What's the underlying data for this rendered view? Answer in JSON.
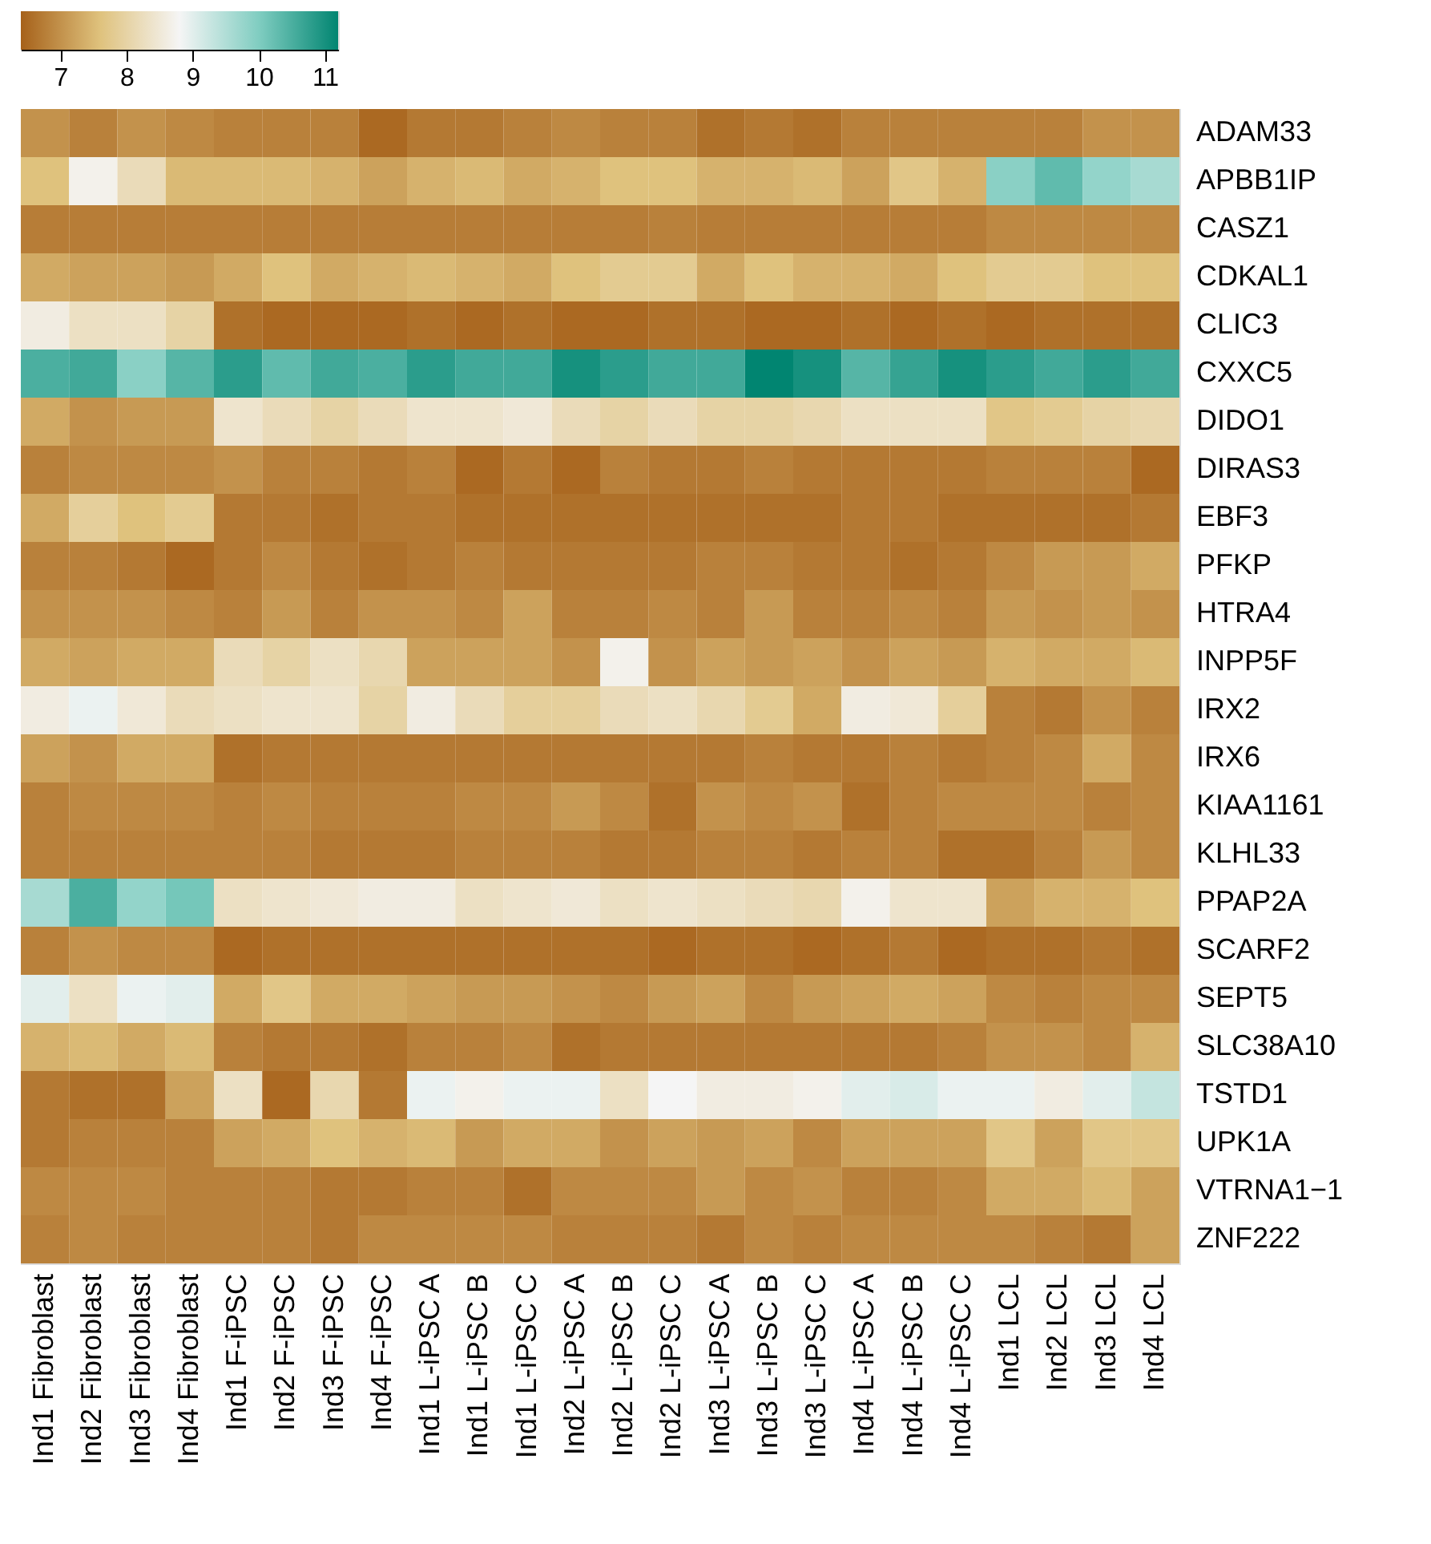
{
  "chart_data": {
    "type": "heatmap",
    "categories": [
      "Ind1 Fibroblast",
      "Ind2 Fibroblast",
      "Ind3 Fibroblast",
      "Ind4 Fibroblast",
      "Ind1 F-iPSC",
      "Ind2 F-iPSC",
      "Ind3 F-iPSC",
      "Ind4 F-iPSC",
      "Ind1 L-iPSC A",
      "Ind1 L-iPSC B",
      "Ind1 L-iPSC C",
      "Ind2 L-iPSC A",
      "Ind2 L-iPSC B",
      "Ind2 L-iPSC C",
      "Ind3 L-iPSC A",
      "Ind3 L-iPSC B",
      "Ind3 L-iPSC C",
      "Ind4 L-iPSC A",
      "Ind4 L-iPSC B",
      "Ind4 L-iPSC C",
      "Ind1 LCL",
      "Ind2 LCL",
      "Ind3 LCL",
      "Ind4 LCL"
    ],
    "y_categories": [
      "ADAM33",
      "APBB1IP",
      "CASZ1",
      "CDKAL1",
      "CLIC3",
      "CXXC5",
      "DIDO1",
      "DIRAS3",
      "EBF3",
      "PFKP",
      "HTRA4",
      "INPP5F",
      "IRX2",
      "IRX6",
      "KIAA1161",
      "KLHL33",
      "PPAP2A",
      "SCARF2",
      "SEPT5",
      "SLC38A10",
      "TSTD1",
      "UPK1A",
      "VTRNA1−1",
      "ZNF222"
    ],
    "cells": [
      [
        7.0,
        6.8,
        7.0,
        6.9,
        6.8,
        6.8,
        6.8,
        6.5,
        6.7,
        6.7,
        6.8,
        6.9,
        6.8,
        6.8,
        6.6,
        6.7,
        6.6,
        6.8,
        6.8,
        6.8,
        6.8,
        6.8,
        7.0,
        7.0
      ],
      [
        7.6,
        8.7,
        8.2,
        7.5,
        7.5,
        7.5,
        7.4,
        7.2,
        7.4,
        7.5,
        7.3,
        7.4,
        7.6,
        7.6,
        7.4,
        7.4,
        7.5,
        7.2,
        7.7,
        7.4,
        9.9,
        10.3,
        9.8,
        9.6
      ],
      [
        6.75,
        6.75,
        6.75,
        6.75,
        6.75,
        6.75,
        6.75,
        6.75,
        6.75,
        6.75,
        6.75,
        6.75,
        6.75,
        6.8,
        6.75,
        6.75,
        6.75,
        6.75,
        6.75,
        6.75,
        6.9,
        6.9,
        6.9,
        6.9
      ],
      [
        7.3,
        7.2,
        7.2,
        7.1,
        7.3,
        7.6,
        7.3,
        7.4,
        7.5,
        7.4,
        7.3,
        7.6,
        7.8,
        7.8,
        7.3,
        7.6,
        7.4,
        7.4,
        7.3,
        7.6,
        7.8,
        7.8,
        7.6,
        7.6
      ],
      [
        8.6,
        8.3,
        8.3,
        8.0,
        6.6,
        6.5,
        6.5,
        6.5,
        6.6,
        6.5,
        6.6,
        6.5,
        6.5,
        6.6,
        6.6,
        6.5,
        6.5,
        6.6,
        6.5,
        6.6,
        6.5,
        6.6,
        6.6,
        6.6
      ],
      [
        10.5,
        10.6,
        9.9,
        10.4,
        10.8,
        10.3,
        10.6,
        10.5,
        10.8,
        10.6,
        10.6,
        11.0,
        10.8,
        10.6,
        10.6,
        11.2,
        11.0,
        10.4,
        10.7,
        11.0,
        10.8,
        10.6,
        10.8,
        10.6
      ],
      [
        7.3,
        7.0,
        7.1,
        7.1,
        8.4,
        8.2,
        8.0,
        8.2,
        8.4,
        8.4,
        8.5,
        8.2,
        8.0,
        8.2,
        8.0,
        8.0,
        8.1,
        8.3,
        8.3,
        8.3,
        7.7,
        7.8,
        8.0,
        8.1
      ],
      [
        6.8,
        6.9,
        6.9,
        6.9,
        7.0,
        6.8,
        6.8,
        6.7,
        6.8,
        6.5,
        6.7,
        6.5,
        6.8,
        6.7,
        6.7,
        6.8,
        6.7,
        6.7,
        6.7,
        6.7,
        6.8,
        6.8,
        6.8,
        6.5
      ],
      [
        7.3,
        7.9,
        7.6,
        7.8,
        6.7,
        6.7,
        6.6,
        6.7,
        6.7,
        6.6,
        6.6,
        6.6,
        6.6,
        6.6,
        6.6,
        6.6,
        6.6,
        6.7,
        6.7,
        6.6,
        6.6,
        6.6,
        6.6,
        6.7
      ],
      [
        6.8,
        6.8,
        6.7,
        6.5,
        6.7,
        6.9,
        6.7,
        6.6,
        6.7,
        6.8,
        6.7,
        6.7,
        6.7,
        6.7,
        6.8,
        6.8,
        6.7,
        6.7,
        6.6,
        6.7,
        6.9,
        7.1,
        7.1,
        7.3
      ],
      [
        7.0,
        7.0,
        7.0,
        6.9,
        6.8,
        7.1,
        6.8,
        7.0,
        7.0,
        6.9,
        7.2,
        6.8,
        6.8,
        6.9,
        6.8,
        7.1,
        6.8,
        6.8,
        6.9,
        6.8,
        7.1,
        7.0,
        7.1,
        7.0
      ],
      [
        7.3,
        7.2,
        7.3,
        7.3,
        8.2,
        8.0,
        8.3,
        8.1,
        7.2,
        7.2,
        7.2,
        7.0,
        8.7,
        7.0,
        7.2,
        7.1,
        7.2,
        7.0,
        7.2,
        7.1,
        7.4,
        7.3,
        7.3,
        7.5
      ],
      [
        8.6,
        8.9,
        8.5,
        8.2,
        8.3,
        8.4,
        8.4,
        8.0,
        8.6,
        8.2,
        7.9,
        7.9,
        8.2,
        8.3,
        8.1,
        7.8,
        7.3,
        8.6,
        8.5,
        7.9,
        6.8,
        6.7,
        7.0,
        6.8
      ],
      [
        7.2,
        7.0,
        7.3,
        7.3,
        6.6,
        6.7,
        6.7,
        6.7,
        6.7,
        6.7,
        6.7,
        6.7,
        6.7,
        6.7,
        6.7,
        6.8,
        6.7,
        6.7,
        6.8,
        6.7,
        6.8,
        6.9,
        7.3,
        6.9
      ],
      [
        6.8,
        6.9,
        6.9,
        6.9,
        6.8,
        6.9,
        6.8,
        6.8,
        6.8,
        6.9,
        6.9,
        7.1,
        6.9,
        6.6,
        7.0,
        6.9,
        7.0,
        6.6,
        6.8,
        6.9,
        6.9,
        6.9,
        6.8,
        6.9
      ],
      [
        6.8,
        6.8,
        6.8,
        6.8,
        6.8,
        6.8,
        6.7,
        6.7,
        6.7,
        6.8,
        6.8,
        6.8,
        6.7,
        6.7,
        6.8,
        6.8,
        6.7,
        6.8,
        6.8,
        6.6,
        6.6,
        6.8,
        7.1,
        6.9
      ],
      [
        9.6,
        10.5,
        9.8,
        10.1,
        8.3,
        8.4,
        8.5,
        8.6,
        8.6,
        8.3,
        8.4,
        8.5,
        8.3,
        8.4,
        8.3,
        8.2,
        8.1,
        8.7,
        8.4,
        8.4,
        7.2,
        7.4,
        7.4,
        7.6
      ],
      [
        6.8,
        7.0,
        6.9,
        6.9,
        6.5,
        6.6,
        6.6,
        6.6,
        6.6,
        6.6,
        6.6,
        6.6,
        6.6,
        6.5,
        6.6,
        6.6,
        6.5,
        6.6,
        6.7,
        6.5,
        6.6,
        6.6,
        6.7,
        6.6
      ],
      [
        9.0,
        8.3,
        8.9,
        9.0,
        7.3,
        7.7,
        7.3,
        7.3,
        7.2,
        7.1,
        7.1,
        7.0,
        6.9,
        7.1,
        7.2,
        6.9,
        7.1,
        7.2,
        7.3,
        7.2,
        6.9,
        6.8,
        6.9,
        6.9
      ],
      [
        7.4,
        7.5,
        7.3,
        7.5,
        6.8,
        6.7,
        6.7,
        6.6,
        6.8,
        6.8,
        6.9,
        6.6,
        6.7,
        6.7,
        6.7,
        6.7,
        6.7,
        6.7,
        6.7,
        6.8,
        7.0,
        7.0,
        6.9,
        7.4
      ],
      [
        6.7,
        6.6,
        6.6,
        7.2,
        8.3,
        6.5,
        8.1,
        6.7,
        8.9,
        8.7,
        8.9,
        8.9,
        8.3,
        8.8,
        8.6,
        8.6,
        8.7,
        9.0,
        9.1,
        8.9,
        8.9,
        8.6,
        9.0,
        9.3
      ],
      [
        6.7,
        6.8,
        6.8,
        6.8,
        7.2,
        7.3,
        7.6,
        7.4,
        7.5,
        7.1,
        7.3,
        7.3,
        7.0,
        7.2,
        7.1,
        7.2,
        6.9,
        7.2,
        7.2,
        7.2,
        7.7,
        7.2,
        7.7,
        7.7
      ],
      [
        6.9,
        6.9,
        6.9,
        6.8,
        6.8,
        6.8,
        6.7,
        6.7,
        6.8,
        6.8,
        6.6,
        6.9,
        6.9,
        6.9,
        7.1,
        6.9,
        7.0,
        6.8,
        6.8,
        6.9,
        7.3,
        7.3,
        7.5,
        7.2
      ],
      [
        6.8,
        6.9,
        6.8,
        6.8,
        6.8,
        6.8,
        6.7,
        6.9,
        6.9,
        6.9,
        6.9,
        6.8,
        6.8,
        6.8,
        6.7,
        6.9,
        6.8,
        6.9,
        6.9,
        6.9,
        6.9,
        6.8,
        6.7,
        7.2
      ]
    ],
    "clim": [
      6.4,
      11.2
    ],
    "cticks": [
      7,
      8,
      9,
      10,
      11
    ],
    "colors": [
      "#a6611a",
      "#dfc27d",
      "#f5f5f5",
      "#80cdc1",
      "#018571"
    ]
  }
}
